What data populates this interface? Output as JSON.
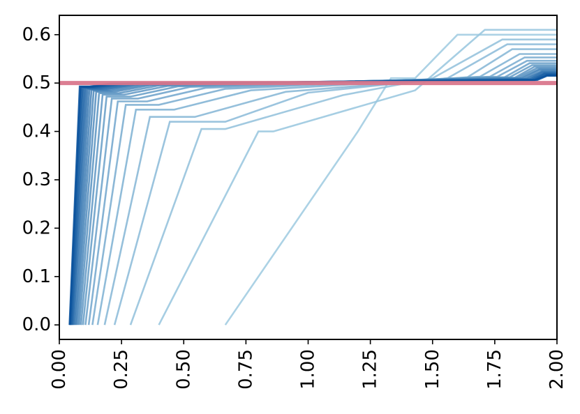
{
  "chart_data": {
    "type": "line",
    "title": "",
    "xlabel": "",
    "ylabel": "",
    "xlim": [
      0.0,
      2.0
    ],
    "ylim": [
      -0.03,
      0.64
    ],
    "grid": false,
    "x_ticks": [
      "0.00",
      "0.25",
      "0.50",
      "0.75",
      "1.00",
      "1.25",
      "1.50",
      "1.75",
      "2.00"
    ],
    "y_ticks": [
      "0.0",
      "0.1",
      "0.2",
      "0.3",
      "0.4",
      "0.5",
      "0.6"
    ],
    "reference_line": {
      "y": 0.5,
      "color": "#d9778c"
    },
    "colors": {
      "light": "#9ecae1",
      "dark": "#08519c"
    },
    "series": [
      {
        "values": [
          [
            0.667,
            0.0
          ],
          [
            1.2,
            0.4
          ],
          [
            1.333,
            0.51
          ],
          [
            1.43,
            0.51
          ],
          [
            1.6,
            0.6
          ],
          [
            2.0,
            0.6
          ]
        ]
      },
      {
        "values": [
          [
            0.4,
            0.0
          ],
          [
            0.8,
            0.4
          ],
          [
            0.86,
            0.4
          ],
          [
            1.43,
            0.485
          ],
          [
            1.71,
            0.61
          ],
          [
            2.0,
            0.61
          ]
        ]
      },
      {
        "values": [
          [
            0.286,
            0.0
          ],
          [
            0.571,
            0.405
          ],
          [
            0.667,
            0.405
          ],
          [
            1.14,
            0.475
          ],
          [
            1.5,
            0.51
          ],
          [
            1.78,
            0.59
          ],
          [
            2.0,
            0.59
          ]
        ]
      },
      {
        "values": [
          [
            0.222,
            0.0
          ],
          [
            0.444,
            0.42
          ],
          [
            0.667,
            0.42
          ],
          [
            1.0,
            0.48
          ],
          [
            1.56,
            0.51
          ],
          [
            1.8,
            0.58
          ],
          [
            2.0,
            0.58
          ]
        ]
      },
      {
        "values": [
          [
            0.182,
            0.0
          ],
          [
            0.364,
            0.43
          ],
          [
            0.545,
            0.43
          ],
          [
            0.91,
            0.482
          ],
          [
            1.64,
            0.512
          ],
          [
            1.82,
            0.57
          ],
          [
            2.0,
            0.57
          ]
        ]
      },
      {
        "values": [
          [
            0.154,
            0.0
          ],
          [
            0.308,
            0.445
          ],
          [
            0.462,
            0.445
          ],
          [
            0.77,
            0.485
          ],
          [
            1.69,
            0.513
          ],
          [
            1.85,
            0.56
          ],
          [
            2.0,
            0.56
          ]
        ]
      },
      {
        "values": [
          [
            0.133,
            0.0
          ],
          [
            0.267,
            0.455
          ],
          [
            0.4,
            0.455
          ],
          [
            0.667,
            0.488
          ],
          [
            1.73,
            0.513
          ],
          [
            1.87,
            0.553
          ],
          [
            2.0,
            0.553
          ]
        ]
      },
      {
        "values": [
          [
            0.118,
            0.0
          ],
          [
            0.235,
            0.462
          ],
          [
            0.353,
            0.462
          ],
          [
            0.588,
            0.49
          ],
          [
            1.76,
            0.513
          ],
          [
            1.88,
            0.546
          ],
          [
            2.0,
            0.546
          ]
        ]
      },
      {
        "values": [
          [
            0.105,
            0.0
          ],
          [
            0.211,
            0.468
          ],
          [
            0.316,
            0.468
          ],
          [
            0.526,
            0.492
          ],
          [
            1.79,
            0.512
          ],
          [
            1.89,
            0.541
          ],
          [
            2.0,
            0.541
          ]
        ]
      },
      {
        "values": [
          [
            0.095,
            0.0
          ],
          [
            0.19,
            0.472
          ],
          [
            0.286,
            0.472
          ],
          [
            0.476,
            0.493
          ],
          [
            1.81,
            0.512
          ],
          [
            1.9,
            0.537
          ],
          [
            2.0,
            0.537
          ]
        ]
      },
      {
        "values": [
          [
            0.087,
            0.0
          ],
          [
            0.174,
            0.476
          ],
          [
            0.261,
            0.476
          ],
          [
            0.435,
            0.494
          ],
          [
            1.83,
            0.511
          ],
          [
            1.91,
            0.534
          ],
          [
            2.0,
            0.534
          ]
        ]
      },
      {
        "values": [
          [
            0.08,
            0.0
          ],
          [
            0.16,
            0.479
          ],
          [
            0.24,
            0.479
          ],
          [
            0.4,
            0.495
          ],
          [
            1.84,
            0.511
          ],
          [
            1.92,
            0.531
          ],
          [
            2.0,
            0.531
          ]
        ]
      },
      {
        "values": [
          [
            0.074,
            0.0
          ],
          [
            0.148,
            0.482
          ],
          [
            0.222,
            0.482
          ],
          [
            0.37,
            0.496
          ],
          [
            1.85,
            0.51
          ],
          [
            1.93,
            0.529
          ],
          [
            2.0,
            0.529
          ]
        ]
      },
      {
        "values": [
          [
            0.069,
            0.0
          ],
          [
            0.138,
            0.484
          ],
          [
            0.207,
            0.484
          ],
          [
            0.345,
            0.496
          ],
          [
            1.86,
            0.51
          ],
          [
            1.93,
            0.527
          ],
          [
            2.0,
            0.527
          ]
        ]
      },
      {
        "values": [
          [
            0.065,
            0.0
          ],
          [
            0.129,
            0.486
          ],
          [
            0.194,
            0.486
          ],
          [
            0.323,
            0.497
          ],
          [
            1.87,
            0.509
          ],
          [
            1.94,
            0.525
          ],
          [
            2.0,
            0.525
          ]
        ]
      },
      {
        "values": [
          [
            0.061,
            0.0
          ],
          [
            0.121,
            0.487
          ],
          [
            0.182,
            0.487
          ],
          [
            0.303,
            0.497
          ],
          [
            1.88,
            0.509
          ],
          [
            1.94,
            0.523
          ],
          [
            2.0,
            0.523
          ]
        ]
      },
      {
        "values": [
          [
            0.057,
            0.0
          ],
          [
            0.114,
            0.488
          ],
          [
            0.171,
            0.488
          ],
          [
            0.286,
            0.497
          ],
          [
            1.89,
            0.508
          ],
          [
            1.94,
            0.522
          ],
          [
            2.0,
            0.522
          ]
        ]
      },
      {
        "values": [
          [
            0.054,
            0.0
          ],
          [
            0.108,
            0.489
          ],
          [
            0.162,
            0.489
          ],
          [
            0.27,
            0.498
          ],
          [
            1.89,
            0.508
          ],
          [
            1.95,
            0.521
          ],
          [
            2.0,
            0.521
          ]
        ]
      },
      {
        "values": [
          [
            0.051,
            0.0
          ],
          [
            0.103,
            0.49
          ],
          [
            0.154,
            0.49
          ],
          [
            0.256,
            0.498
          ],
          [
            1.9,
            0.507
          ],
          [
            1.95,
            0.52
          ],
          [
            2.0,
            0.52
          ]
        ]
      },
      {
        "values": [
          [
            0.049,
            0.0
          ],
          [
            0.098,
            0.491
          ],
          [
            0.146,
            0.491
          ],
          [
            0.244,
            0.498
          ],
          [
            1.9,
            0.507
          ],
          [
            1.95,
            0.519
          ],
          [
            2.0,
            0.519
          ]
        ]
      },
      {
        "values": [
          [
            0.047,
            0.0
          ],
          [
            0.093,
            0.491
          ],
          [
            0.14,
            0.491
          ],
          [
            0.233,
            0.498
          ],
          [
            1.91,
            0.507
          ],
          [
            1.95,
            0.518
          ],
          [
            2.0,
            0.518
          ]
        ]
      },
      {
        "values": [
          [
            0.044,
            0.0
          ],
          [
            0.089,
            0.492
          ],
          [
            0.133,
            0.492
          ],
          [
            0.222,
            0.499
          ],
          [
            1.91,
            0.506
          ],
          [
            1.96,
            0.517
          ],
          [
            2.0,
            0.517
          ]
        ]
      },
      {
        "values": [
          [
            0.043,
            0.0
          ],
          [
            0.085,
            0.492
          ],
          [
            0.128,
            0.492
          ],
          [
            0.213,
            0.499
          ],
          [
            1.91,
            0.506
          ],
          [
            1.96,
            0.516
          ],
          [
            2.0,
            0.516
          ]
        ]
      },
      {
        "values": [
          [
            0.041,
            0.0
          ],
          [
            0.082,
            0.493
          ],
          [
            0.122,
            0.493
          ],
          [
            0.204,
            0.499
          ],
          [
            1.92,
            0.506
          ],
          [
            1.96,
            0.515
          ],
          [
            2.0,
            0.515
          ]
        ]
      }
    ]
  }
}
